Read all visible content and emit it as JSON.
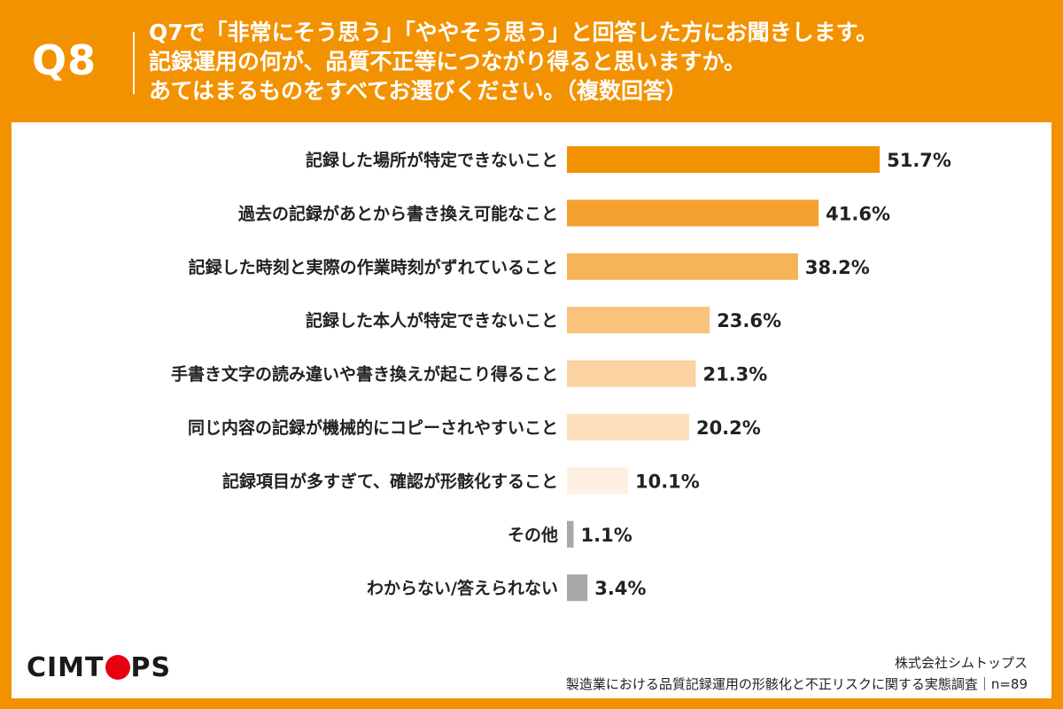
{
  "header": {
    "q_label": "Q8",
    "question_lines": [
      "Q7で「非常にそう思う」「ややそう思う」と回答した方にお聞きします。",
      "記録運用の何が、品質不正等につながり得ると思いますか。",
      "あてはまるものをすべてお選びください。（複数回答）"
    ]
  },
  "colors": {
    "header_bg": "#f39200",
    "panel_bg": "#ffffff",
    "logo_dot": "#e60012"
  },
  "chart_data": {
    "type": "bar",
    "orientation": "horizontal",
    "categories": [
      "記録した場所が特定できないこと",
      "過去の記録があとから書き換え可能なこと",
      "記録した時刻と実際の作業時刻がずれていること",
      "記録した本人が特定できないこと",
      "手書き文字の読み違いや書き換えが起こり得ること",
      "同じ内容の記録が機械的にコピーされやすいこと",
      "記録項目が多すぎて、確認が形骸化すること",
      "その他",
      "わからない/答えられない"
    ],
    "values": [
      51.7,
      41.6,
      38.2,
      23.6,
      21.3,
      20.2,
      10.1,
      1.1,
      3.4
    ],
    "value_labels": [
      "51.7%",
      "41.6%",
      "38.2%",
      "23.6%",
      "21.3%",
      "20.2%",
      "10.1%",
      "1.1%",
      "3.4%"
    ],
    "bar_colors": [
      "#f39200",
      "#f5a131",
      "#f7b358",
      "#f9c37c",
      "#fad3a0",
      "#fce0bd",
      "#fdf0e3",
      "#a8a8a8",
      "#a8a8a8"
    ],
    "xlim": [
      0,
      100
    ],
    "grid": false
  },
  "footer": {
    "logo_left": "CIMT",
    "logo_right": "PS",
    "company": "株式会社シムトップス",
    "survey": "製造業における品質記録運用の形骸化と不正リスクに関する実態調査｜n=89"
  }
}
